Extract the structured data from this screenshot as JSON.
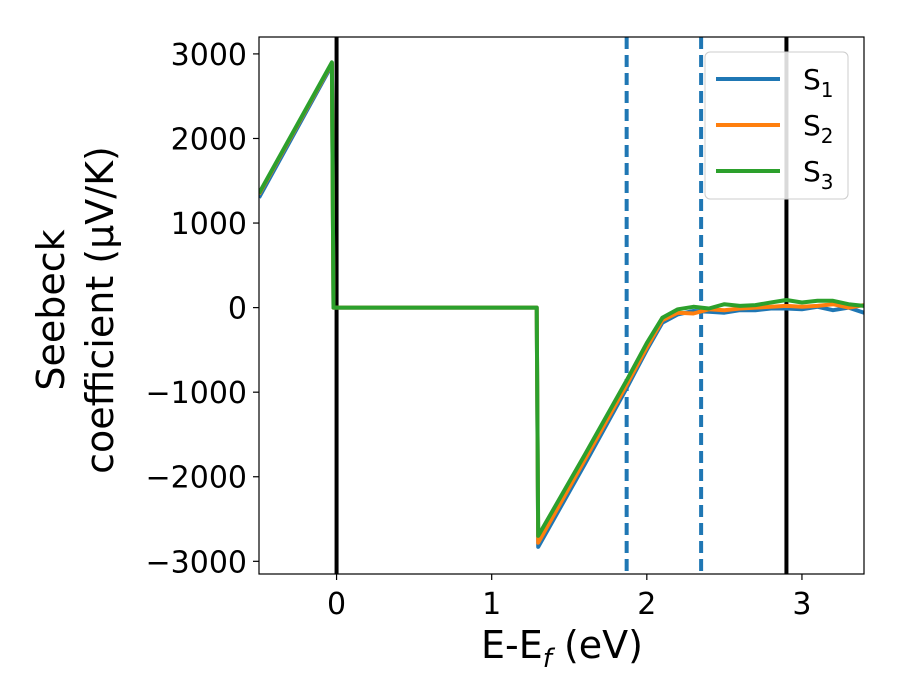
{
  "chart_data": {
    "type": "line",
    "xlabel": "E-E_f (eV)",
    "xlabel_parts": {
      "main": "E-E",
      "sub": "f",
      "tail": " (eV)"
    },
    "ylabel_lines": [
      "Seebeck",
      "coefficient  (μV/K)"
    ],
    "xlim": [
      -0.5,
      3.4
    ],
    "ylim": [
      -3150,
      3200
    ],
    "xticks": [
      0,
      1,
      2,
      3
    ],
    "xtick_labels": [
      "0",
      "1",
      "2",
      "3"
    ],
    "yticks": [
      -3000,
      -2000,
      -1000,
      0,
      1000,
      2000,
      3000
    ],
    "ytick_labels": [
      "−3000",
      "−2000",
      "−1000",
      "0",
      "1000",
      "2000",
      "3000"
    ],
    "grid": false,
    "legend_position": "top-right",
    "vlines": [
      {
        "x": 0.0,
        "style": "solid",
        "color": "#000000"
      },
      {
        "x": 2.9,
        "style": "solid",
        "color": "#000000"
      },
      {
        "x": 1.87,
        "style": "dashed",
        "color": "#1f77b4"
      },
      {
        "x": 2.35,
        "style": "dashed",
        "color": "#1f77b4"
      }
    ],
    "series": [
      {
        "name": "S",
        "subscript": "1",
        "color": "#1f77b4",
        "x": [
          -0.5,
          -0.03,
          -0.02,
          1.29,
          1.3,
          1.6,
          1.87,
          2.0,
          2.1,
          2.2,
          2.3,
          2.4,
          2.5,
          2.6,
          2.7,
          2.8,
          2.9,
          3.0,
          3.1,
          3.2,
          3.3,
          3.4
        ],
        "y": [
          1300,
          2870,
          0,
          0,
          -2830,
          -1850,
          -950,
          -500,
          -180,
          -80,
          -40,
          -50,
          -60,
          -30,
          -30,
          -10,
          -10,
          -20,
          10,
          -30,
          0,
          -60
        ]
      },
      {
        "name": "S",
        "subscript": "2",
        "color": "#ff7f0e",
        "x": [
          -0.5,
          -0.03,
          -0.02,
          1.29,
          1.3,
          1.6,
          1.87,
          2.0,
          2.1,
          2.2,
          2.3,
          2.4,
          2.5,
          2.6,
          2.7,
          2.8,
          2.9,
          3.0,
          3.1,
          3.2,
          3.3,
          3.4
        ],
        "y": [
          1340,
          2890,
          0,
          0,
          -2780,
          -1800,
          -910,
          -470,
          -150,
          -60,
          -70,
          -20,
          -30,
          -10,
          0,
          10,
          20,
          10,
          20,
          40,
          0,
          30
        ]
      },
      {
        "name": "S",
        "subscript": "3",
        "color": "#2ca02c",
        "x": [
          -0.5,
          -0.03,
          -0.02,
          1.29,
          1.3,
          1.6,
          1.87,
          2.0,
          2.1,
          2.2,
          2.3,
          2.4,
          2.5,
          2.6,
          2.7,
          2.8,
          2.9,
          3.0,
          3.1,
          3.2,
          3.3,
          3.4
        ],
        "y": [
          1350,
          2900,
          0,
          0,
          -2700,
          -1740,
          -860,
          -420,
          -120,
          -20,
          10,
          -10,
          40,
          20,
          30,
          60,
          90,
          60,
          80,
          80,
          40,
          20
        ]
      }
    ]
  }
}
